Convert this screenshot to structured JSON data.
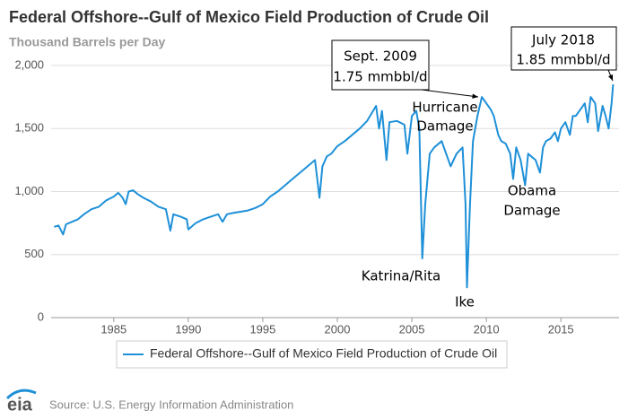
{
  "chart_data": {
    "type": "line",
    "title": "Federal Offshore--Gulf of Mexico Field Production of Crude Oil",
    "subtitle": "Thousand Barrels per Day",
    "x": [
      1981.0,
      1981.3,
      1981.6,
      1981.8,
      1982.2,
      1982.6,
      1983.0,
      1983.5,
      1984.0,
      1984.5,
      1985.0,
      1985.3,
      1985.6,
      1985.8,
      1986.0,
      1986.3,
      1986.6,
      1987.0,
      1987.5,
      1988.0,
      1988.5,
      1988.8,
      1989.0,
      1989.5,
      1989.9,
      1990.0,
      1990.5,
      1991.0,
      1991.5,
      1992.0,
      1992.3,
      1992.6,
      1993.0,
      1993.5,
      1994.0,
      1994.5,
      1995.0,
      1995.5,
      1996.0,
      1996.5,
      1997.0,
      1997.5,
      1998.0,
      1998.5,
      1998.8,
      1999.0,
      1999.3,
      1999.6,
      2000.0,
      2000.5,
      2001.0,
      2001.5,
      2002.0,
      2002.3,
      2002.6,
      2002.8,
      2003.0,
      2003.3,
      2003.5,
      2004.0,
      2004.5,
      2004.7,
      2005.0,
      2005.3,
      2005.5,
      2005.7,
      2005.9,
      2006.2,
      2006.5,
      2007.0,
      2007.3,
      2007.6,
      2008.0,
      2008.4,
      2008.6,
      2008.7,
      2008.9,
      2009.1,
      2009.4,
      2009.7,
      2010.0,
      2010.3,
      2010.5,
      2010.8,
      2011.0,
      2011.3,
      2011.6,
      2011.8,
      2012.0,
      2012.3,
      2012.6,
      2012.8,
      2013.0,
      2013.3,
      2013.6,
      2013.8,
      2014.0,
      2014.3,
      2014.6,
      2014.8,
      2015.0,
      2015.3,
      2015.6,
      2015.8,
      2016.0,
      2016.3,
      2016.6,
      2016.8,
      2017.0,
      2017.3,
      2017.5,
      2017.8,
      2018.0,
      2018.2,
      2018.4,
      2018.5
    ],
    "series": [
      {
        "name": "Federal Offshore--Gulf of Mexico Field Production of Crude Oil",
        "color": "#1e90d8",
        "values": [
          720,
          730,
          660,
          740,
          760,
          780,
          820,
          860,
          880,
          930,
          960,
          990,
          950,
          900,
          1000,
          1010,
          980,
          950,
          920,
          880,
          860,
          690,
          820,
          800,
          780,
          700,
          750,
          780,
          800,
          820,
          760,
          820,
          830,
          840,
          850,
          870,
          900,
          960,
          1000,
          1050,
          1100,
          1150,
          1200,
          1250,
          950,
          1200,
          1280,
          1300,
          1360,
          1400,
          1450,
          1500,
          1560,
          1620,
          1680,
          1500,
          1640,
          1250,
          1550,
          1560,
          1530,
          1300,
          1600,
          1640,
          1500,
          470,
          900,
          1300,
          1350,
          1400,
          1300,
          1200,
          1300,
          1350,
          900,
          240,
          900,
          1400,
          1600,
          1750,
          1700,
          1650,
          1600,
          1450,
          1400,
          1380,
          1300,
          1100,
          1350,
          1250,
          1050,
          1300,
          1280,
          1250,
          1150,
          1350,
          1400,
          1420,
          1470,
          1400,
          1500,
          1550,
          1450,
          1600,
          1600,
          1650,
          1700,
          1550,
          1750,
          1700,
          1480,
          1680,
          1600,
          1500,
          1700,
          1850
        ]
      }
    ],
    "xlim": [
      1980.8,
      2018.9
    ],
    "xticks": [
      1985,
      1990,
      1995,
      2000,
      2005,
      2010,
      2015
    ],
    "ylim": [
      0,
      2000
    ],
    "yticks": [
      0,
      500,
      {
        "value": 1000,
        "label": "1,000"
      },
      {
        "value": 1500,
        "label": "1,500"
      },
      {
        "value": 2000,
        "label": "2,000"
      }
    ],
    "grid": true,
    "legend": "bottom",
    "annotations": [
      {
        "lines": [
          "Sept. 2009",
          "1.75 mmbbl/d"
        ]
      },
      {
        "lines": [
          "July 2018",
          "1.85 mmbbl/d"
        ]
      },
      {
        "lines": [
          "Hurricane",
          "Damage"
        ]
      },
      {
        "lines": [
          "Obama",
          "Damage"
        ]
      },
      {
        "lines": [
          "Katrina/Rita"
        ]
      },
      {
        "lines": [
          "Ike"
        ]
      }
    ],
    "source": "Source: U.S. Energy Information Administration",
    "logo_text": "eia"
  }
}
